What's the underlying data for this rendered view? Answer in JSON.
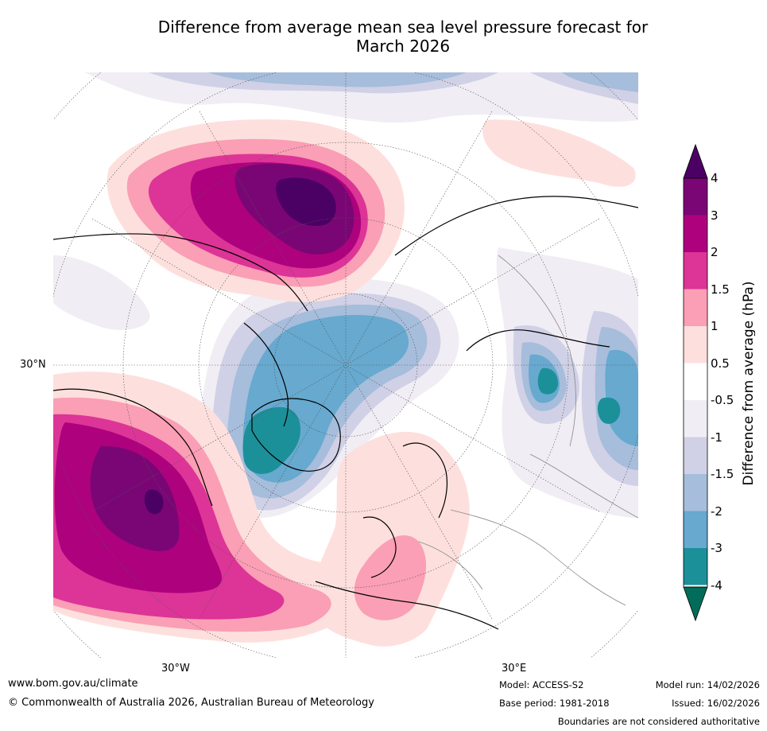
{
  "title": {
    "line1": "Difference from average mean sea level pressure forecast for",
    "line2": "March 2026"
  },
  "map": {
    "projection": "North polar stereographic",
    "labels": {
      "lat30": "30°N",
      "lon30w": "30°W",
      "lon30e": "30°E"
    }
  },
  "colorbar": {
    "label": "Difference from average (hPa)",
    "ticks": [
      "4",
      "3",
      "2",
      "1.5",
      "1",
      "0.5",
      "-0.5",
      "-1",
      "-1.5",
      "-2",
      "-3",
      "-4"
    ],
    "colors": {
      "above_4": "#4b0064",
      "c3_4": "#7a0675",
      "c2_3": "#ae017e",
      "c15_2": "#dd3497",
      "c1_15": "#fa9fb5",
      "c05_1": "#fde0dd",
      "neutral": "#ffffff",
      "cm1_m05": "#f1edf4",
      "cm15_m1": "#d0d1e6",
      "cm2_m15": "#a6bddb",
      "cm3_m2": "#67a9cf",
      "cm4_m3": "#1c9099",
      "below_m4": "#016c59"
    }
  },
  "footer": {
    "url": "www.bom.gov.au/climate",
    "copyright": "© Commonwealth of Australia 2026, Australian Bureau of Meteorology",
    "model": "Model: ACCESS-S2",
    "base_period": "Base period: 1981-2018",
    "model_run": "Model run: 14/02/2026",
    "issued": "Issued: 16/02/2026",
    "disclaimer": "Boundaries are not considered authoritative"
  }
}
